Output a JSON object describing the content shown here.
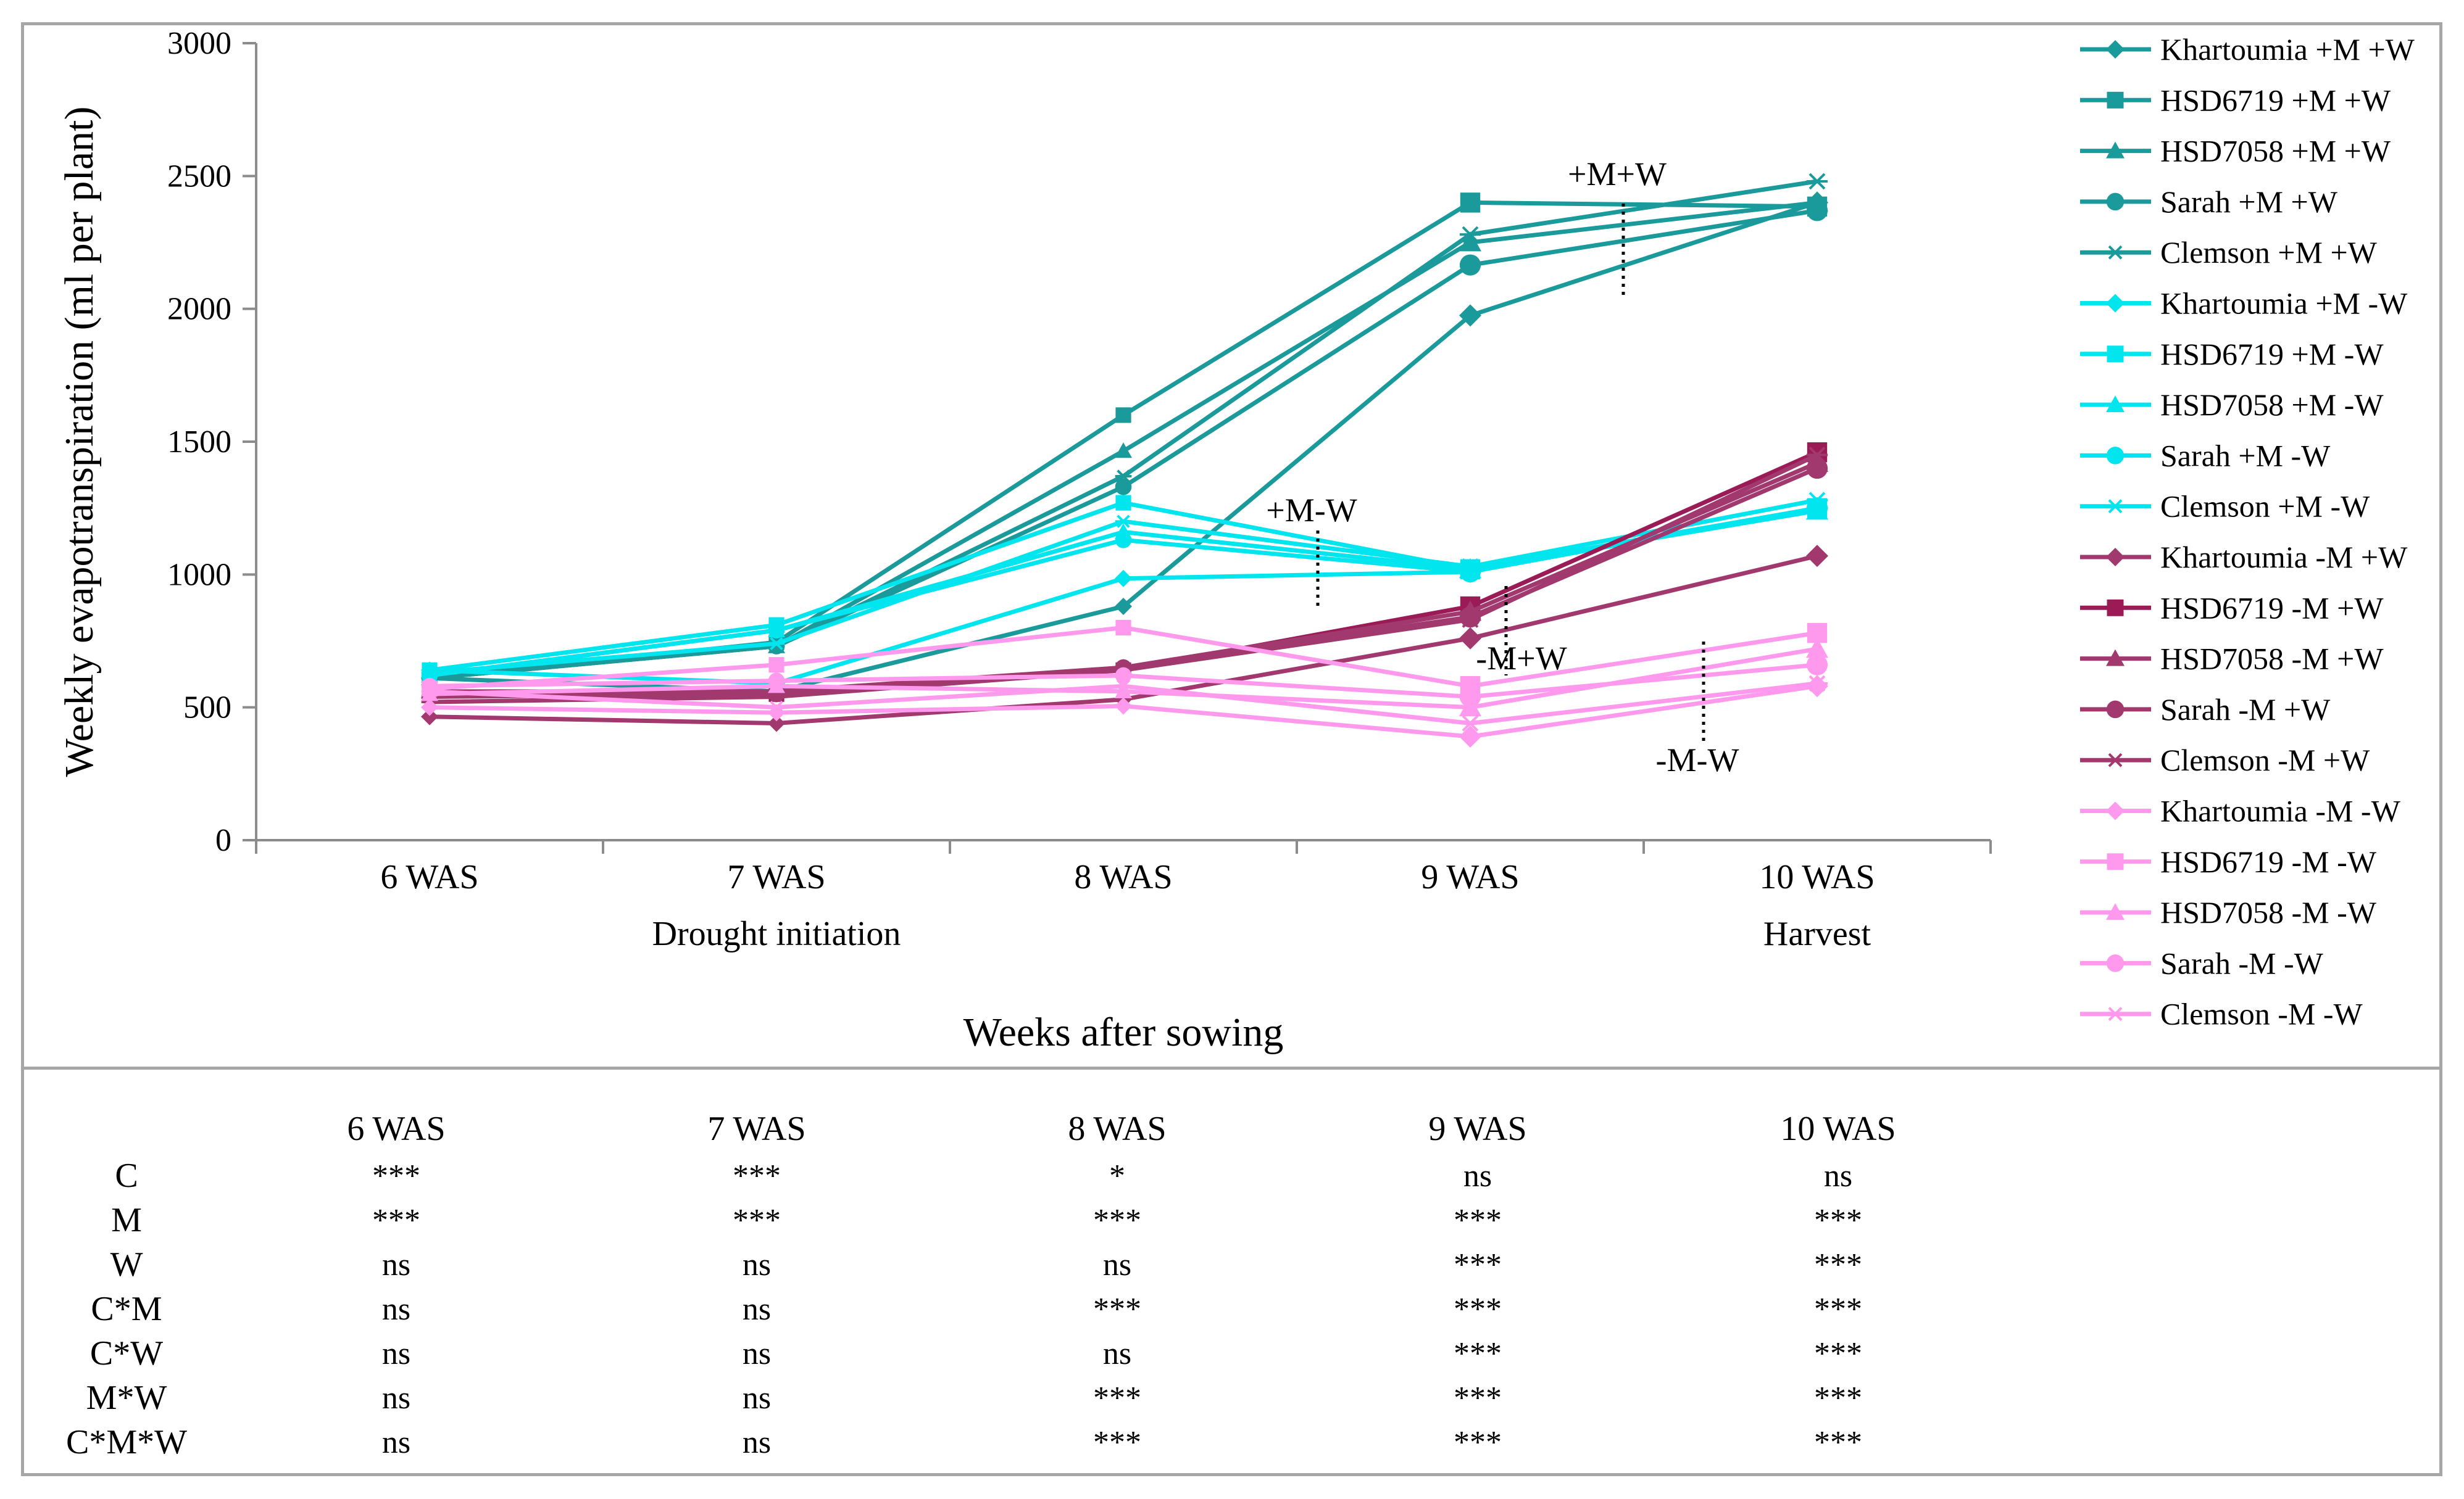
{
  "chart_data": {
    "type": "line",
    "ylabel": "Weekly evapotranspiration (ml per plant)",
    "xlabel": "Weeks after sowing",
    "ylim": [
      0,
      3000
    ],
    "yticks": [
      "0",
      "500",
      "1000",
      "1500",
      "2000",
      "2500",
      "3000"
    ],
    "categories": [
      "6 WAS",
      "7 WAS",
      "8 WAS",
      "9 WAS",
      "10 WAS"
    ],
    "subcategories": [
      "",
      "Drought initiation",
      "",
      "",
      "Harvest"
    ],
    "annotations": [
      "+M+W",
      "+M-W",
      "-M+W",
      "-M-W"
    ],
    "series": [
      {
        "name": "Khartoumia +M +W",
        "color": "#1a9a9a",
        "marker": "diamond",
        "values": [
          610,
          560,
          880,
          1975,
          2400
        ]
      },
      {
        "name": "HSD6719 +M +W",
        "color": "#1a9a9a",
        "marker": "square",
        "values": [
          610,
          745,
          1600,
          2400,
          2385
        ]
      },
      {
        "name": "HSD7058 +M +W",
        "color": "#1a9a9a",
        "marker": "triangle",
        "values": [
          610,
          730,
          1465,
          2250,
          2400
        ]
      },
      {
        "name": "Sarah +M +W",
        "color": "#1a9a9a",
        "marker": "circle",
        "values": [
          610,
          730,
          1330,
          2165,
          2370
        ]
      },
      {
        "name": "Clemson +M +W",
        "color": "#1a9a9a",
        "marker": "asterisk",
        "values": [
          610,
          730,
          1370,
          2280,
          2480
        ]
      },
      {
        "name": "Khartoumia +M -W",
        "color": "#00e5ee",
        "marker": "diamond",
        "values": [
          640,
          590,
          985,
          1010,
          1250
        ]
      },
      {
        "name": "HSD6719 +M -W",
        "color": "#00e5ee",
        "marker": "square",
        "values": [
          640,
          810,
          1270,
          1020,
          1250
        ]
      },
      {
        "name": "HSD7058 +M -W",
        "color": "#00e5ee",
        "marker": "triangle",
        "values": [
          620,
          790,
          1160,
          1020,
          1240
        ]
      },
      {
        "name": "Sarah +M -W",
        "color": "#00e5ee",
        "marker": "circle",
        "values": [
          620,
          790,
          1130,
          1010,
          1250
        ]
      },
      {
        "name": "Clemson +M -W",
        "color": "#00e5ee",
        "marker": "asterisk",
        "values": [
          630,
          740,
          1200,
          1030,
          1280
        ]
      },
      {
        "name": "Khartoumia -M +W",
        "color": "#a1386e",
        "marker": "diamond",
        "values": [
          465,
          440,
          530,
          760,
          1070
        ]
      },
      {
        "name": "HSD6719 -M +W",
        "color": "#9b1b56",
        "marker": "square",
        "values": [
          560,
          550,
          640,
          880,
          1460
        ]
      },
      {
        "name": "HSD7058 -M +W",
        "color": "#a1386e",
        "marker": "triangle",
        "values": [
          560,
          560,
          650,
          860,
          1420
        ]
      },
      {
        "name": "Sarah -M +W",
        "color": "#a1386e",
        "marker": "circle",
        "values": [
          540,
          550,
          650,
          840,
          1400
        ]
      },
      {
        "name": "Clemson -M +W",
        "color": "#a1386e",
        "marker": "asterisk",
        "values": [
          520,
          540,
          640,
          830,
          1450
        ]
      },
      {
        "name": "Khartoumia -M -W",
        "color": "#ff99ee",
        "marker": "diamond",
        "values": [
          500,
          480,
          505,
          390,
          580
        ]
      },
      {
        "name": "HSD6719 -M -W",
        "color": "#ff99ee",
        "marker": "square",
        "values": [
          570,
          660,
          800,
          580,
          780
        ]
      },
      {
        "name": "HSD7058 -M -W",
        "color": "#ff99ee",
        "marker": "triangle",
        "values": [
          550,
          580,
          560,
          500,
          720
        ]
      },
      {
        "name": "Sarah -M -W",
        "color": "#ff99ee",
        "marker": "circle",
        "values": [
          580,
          600,
          620,
          540,
          660
        ]
      },
      {
        "name": "Clemson -M -W",
        "color": "#ff99ee",
        "marker": "asterisk",
        "values": [
          560,
          500,
          580,
          440,
          590
        ]
      }
    ]
  },
  "stats_table": {
    "columns": [
      "6 WAS",
      "7 WAS",
      "8 WAS",
      "9 WAS",
      "10 WAS"
    ],
    "rows": [
      {
        "label": "C",
        "values": [
          "***",
          "***",
          "*",
          "ns",
          "ns"
        ]
      },
      {
        "label": "M",
        "values": [
          "***",
          "***",
          "***",
          "***",
          "***"
        ]
      },
      {
        "label": "W",
        "values": [
          "ns",
          "ns",
          "ns",
          "***",
          "***"
        ]
      },
      {
        "label": "C*M",
        "values": [
          "ns",
          "ns",
          "***",
          "***",
          "***"
        ]
      },
      {
        "label": "C*W",
        "values": [
          "ns",
          "ns",
          "ns",
          "***",
          "***"
        ]
      },
      {
        "label": "M*W",
        "values": [
          "ns",
          "ns",
          "***",
          "***",
          "***"
        ]
      },
      {
        "label": "C*M*W",
        "values": [
          "ns",
          "ns",
          "***",
          "***",
          "***"
        ]
      }
    ]
  }
}
